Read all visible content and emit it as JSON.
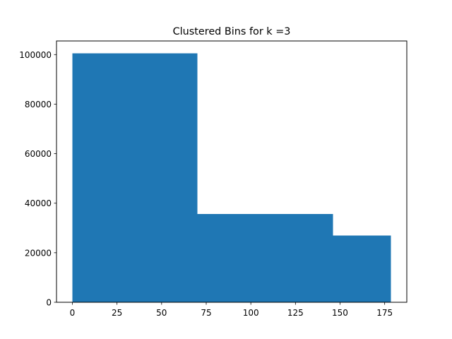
{
  "chart_data": {
    "type": "bar",
    "title": "Clustered Bins for k =3",
    "xlabel": "",
    "ylabel": "",
    "xlim": [
      -8.9,
      187.4
    ],
    "ylim": [
      0,
      105500
    ],
    "grid": false,
    "color": "#1f77b4",
    "bins": [
      {
        "x0": 0,
        "x1": 70,
        "value": 100500
      },
      {
        "x0": 70,
        "x1": 146,
        "value": 35600
      },
      {
        "x0": 146,
        "x1": 178.5,
        "value": 27000
      }
    ],
    "x_ticks": [
      "0",
      "25",
      "50",
      "75",
      "100",
      "125",
      "150",
      "175"
    ],
    "y_ticks": [
      "0",
      "20000",
      "40000",
      "60000",
      "80000",
      "100000"
    ]
  }
}
